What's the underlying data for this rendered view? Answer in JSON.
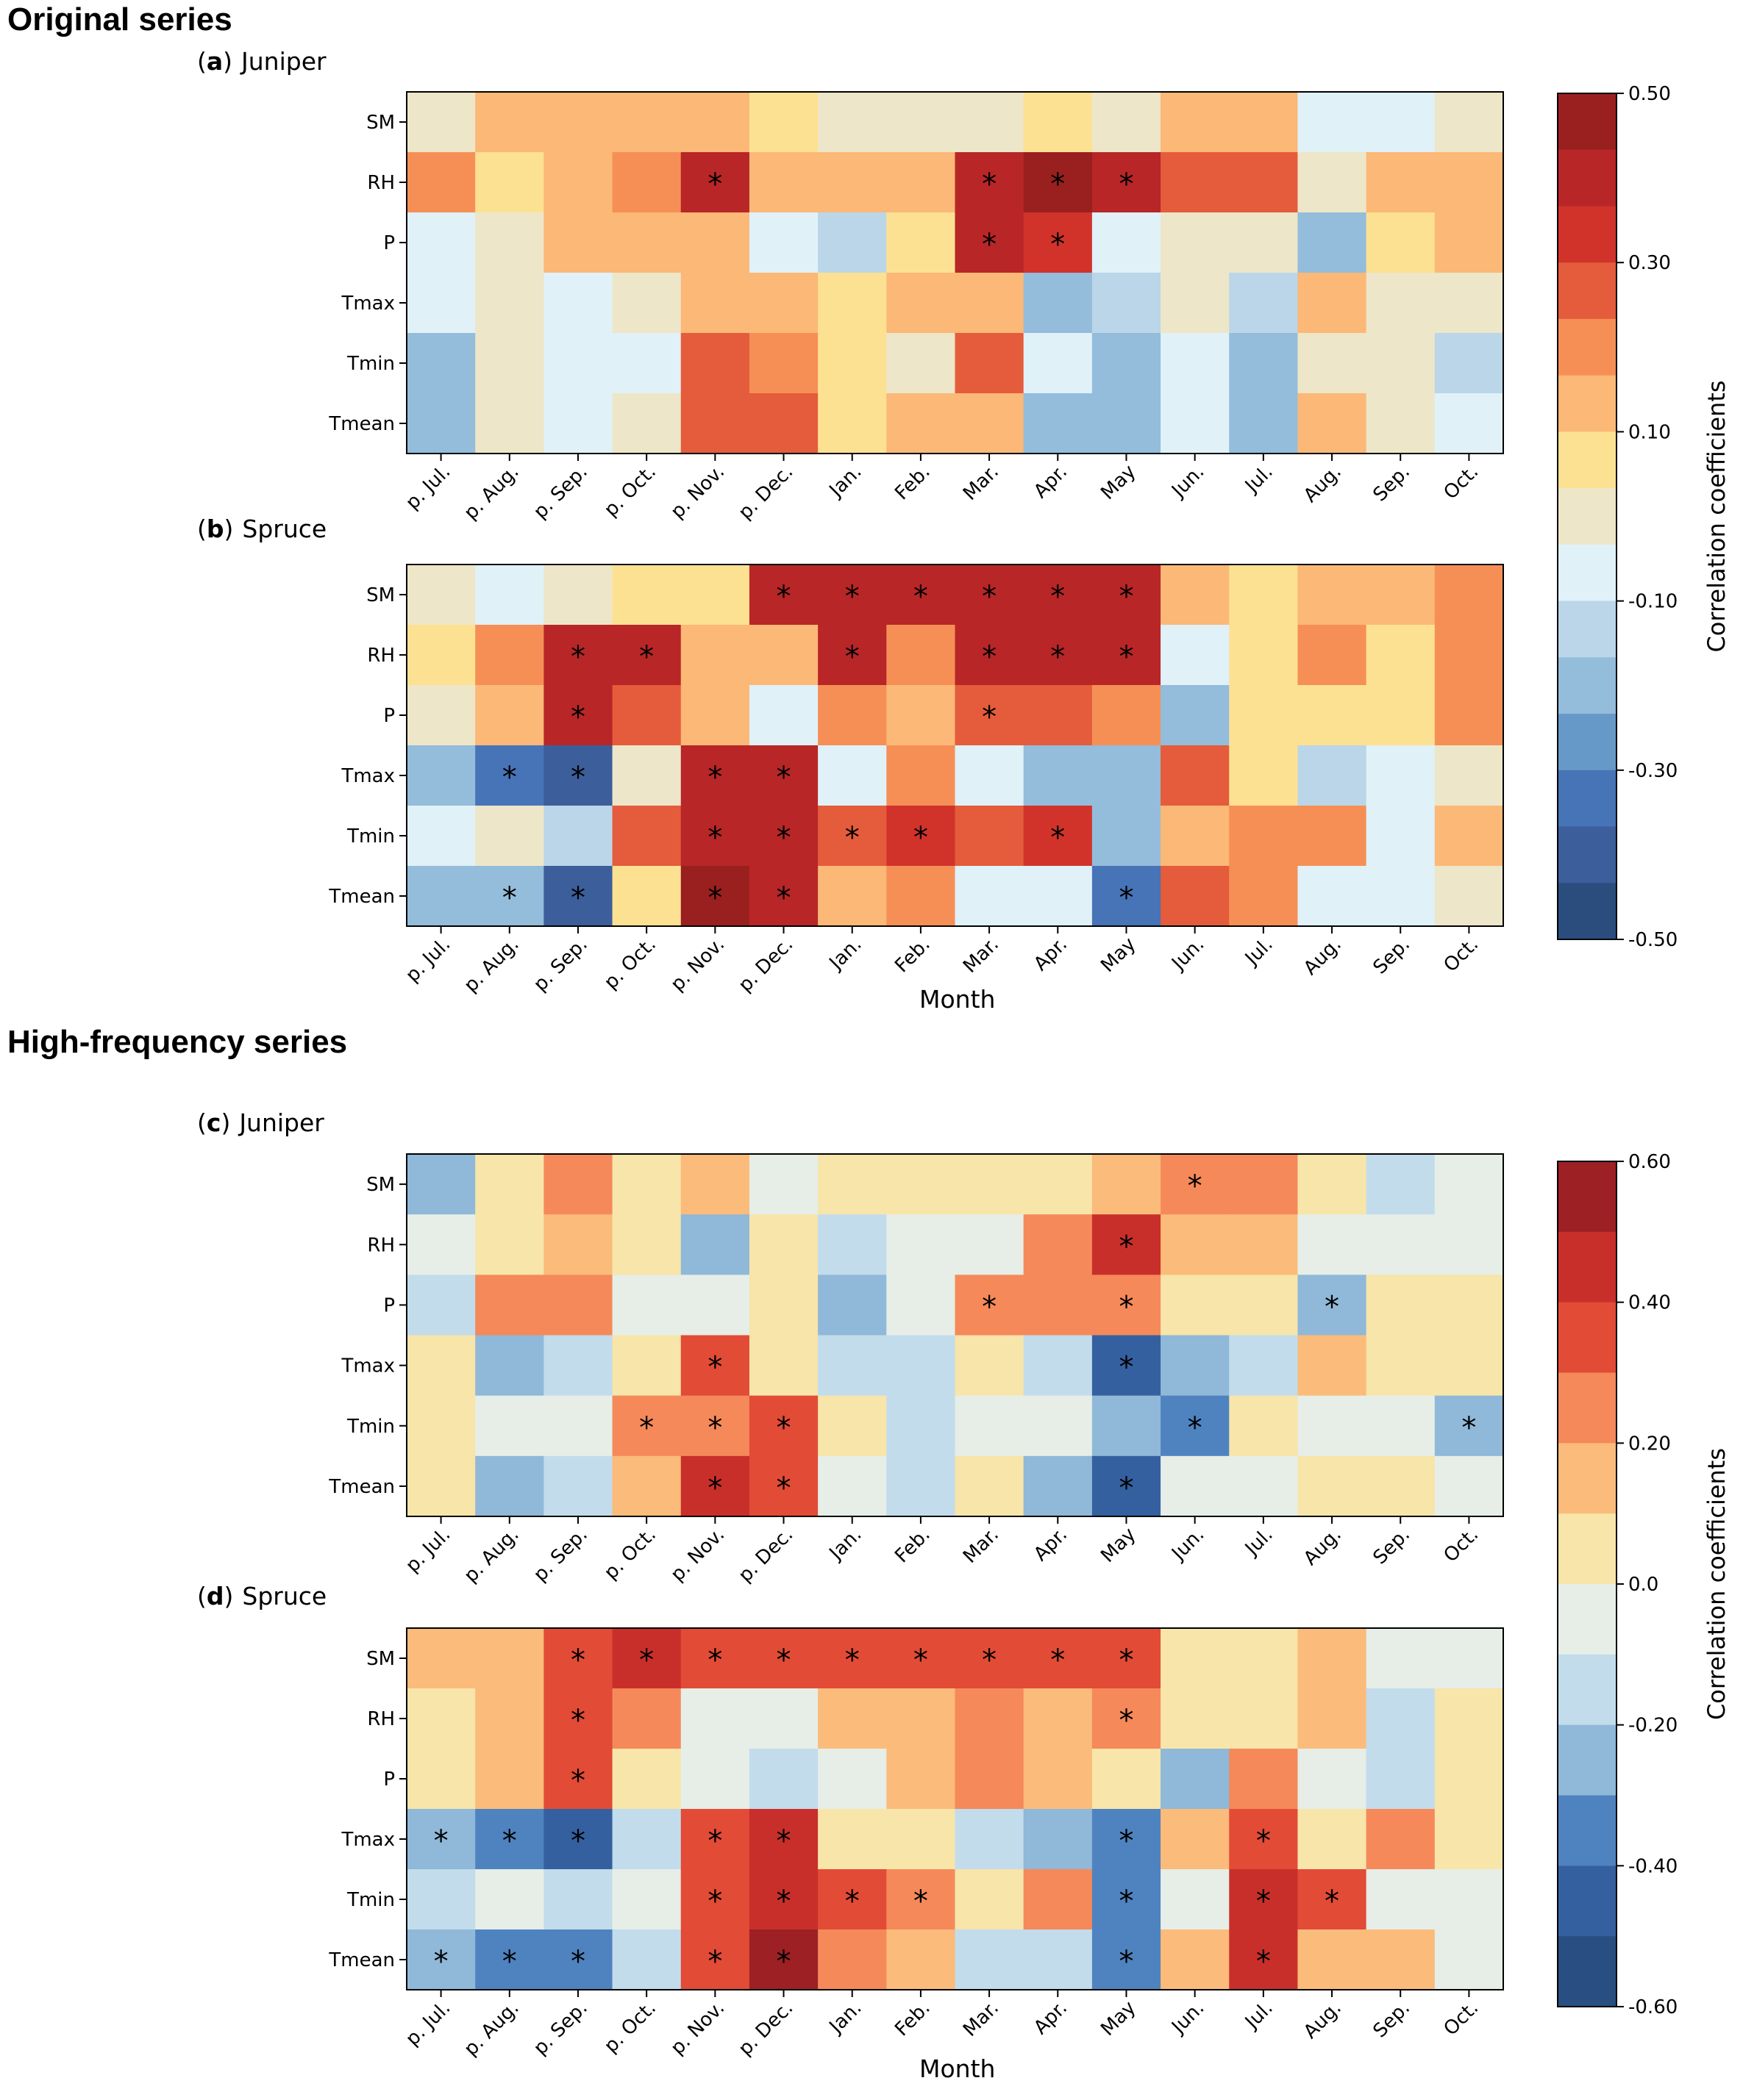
{
  "sections": {
    "original_title": "Original series",
    "highfreq_title": "High-frequency series"
  },
  "panels": [
    {
      "letter": "a",
      "name": "Juniper"
    },
    {
      "letter": "b",
      "name": "Spruce"
    },
    {
      "letter": "c",
      "name": "Juniper"
    },
    {
      "letter": "d",
      "name": "Spruce"
    }
  ],
  "colors": {
    "original": [
      "#2a4d7d",
      "#3c5e9b",
      "#4773b7",
      "#6699c7",
      "#94bcdb",
      "#bad6e8",
      "#e0f1f8",
      "#ede6c8",
      "#fde192",
      "#fbb877",
      "#f68f56",
      "#e45c3b",
      "#d1332b",
      "#b82627",
      "#99201f"
    ],
    "highfreq": [
      "#294e81",
      "#3560a0",
      "#4f83c0",
      "#90b8d8",
      "#c2dcec",
      "#e6eee7",
      "#f7e5a9",
      "#fbbb7a",
      "#f5895a",
      "#e24b36",
      "#c92f2a",
      "#9c2024"
    ]
  },
  "chart_data": [
    {
      "type": "heatmap",
      "panel": "a",
      "title": "Juniper",
      "xlabel": "",
      "ylabel": "",
      "x": [
        "p. Jul.",
        "p. Aug.",
        "p. Sep.",
        "p. Oct.",
        "p. Nov.",
        "p. Dec.",
        "Jan.",
        "Feb.",
        "Mar.",
        "Apr.",
        "May",
        "Jun.",
        "Jul.",
        "Aug.",
        "Sep.",
        "Oct."
      ],
      "y": [
        "SM",
        "RH",
        "P",
        "Tmax",
        "Tmin",
        "Tmean"
      ],
      "values": [
        [
          -0.03,
          0.13,
          0.13,
          0.13,
          0.13,
          0.07,
          -0.03,
          -0.03,
          -0.03,
          0.07,
          -0.03,
          0.13,
          0.13,
          -0.07,
          -0.07,
          -0.03
        ],
        [
          0.23,
          0.07,
          0.13,
          0.23,
          0.37,
          0.13,
          0.13,
          0.13,
          0.37,
          0.44,
          0.37,
          0.27,
          0.27,
          -0.03,
          0.13,
          0.13
        ],
        [
          -0.07,
          -0.03,
          0.13,
          0.13,
          0.13,
          -0.07,
          -0.13,
          0.07,
          0.37,
          0.33,
          -0.07,
          -0.03,
          -0.03,
          -0.17,
          0.07,
          0.13
        ],
        [
          -0.07,
          -0.03,
          -0.07,
          -0.03,
          0.13,
          0.13,
          0.07,
          0.13,
          0.13,
          -0.17,
          -0.13,
          -0.03,
          -0.13,
          0.13,
          -0.03,
          -0.03
        ],
        [
          -0.17,
          -0.03,
          -0.07,
          -0.07,
          0.27,
          0.23,
          0.07,
          -0.03,
          0.27,
          -0.07,
          -0.17,
          -0.07,
          -0.17,
          -0.03,
          -0.03,
          -0.13
        ],
        [
          -0.17,
          -0.03,
          -0.07,
          -0.03,
          0.27,
          0.27,
          0.07,
          0.13,
          0.13,
          -0.23,
          -0.17,
          -0.07,
          -0.23,
          0.13,
          -0.03,
          -0.07
        ]
      ],
      "significant": [
        [],
        [
          "p. Nov.",
          "Mar.",
          "Apr.",
          "May"
        ],
        [
          "Mar.",
          "Apr."
        ],
        [],
        [],
        []
      ],
      "colorbar": {
        "range": [
          -0.5,
          0.5
        ],
        "ticks": [
          "0.50",
          "0.30",
          "0.10",
          "-0.10",
          "-0.30",
          "-0.50"
        ],
        "label": "Correlation coefficients"
      }
    },
    {
      "type": "heatmap",
      "panel": "b",
      "title": "Spruce",
      "xlabel": "Month",
      "ylabel": "",
      "x": [
        "p. Jul.",
        "p. Aug.",
        "p. Sep.",
        "p. Oct.",
        "p. Nov.",
        "p. Dec.",
        "Jan.",
        "Feb.",
        "Mar.",
        "Apr.",
        "May",
        "Jun.",
        "Jul.",
        "Aug.",
        "Sep.",
        "Oct."
      ],
      "y": [
        "SM",
        "RH",
        "P",
        "Tmax",
        "Tmin",
        "Tmean"
      ],
      "values": [
        [
          -0.03,
          -0.07,
          -0.03,
          0.07,
          0.07,
          0.37,
          0.37,
          0.37,
          0.37,
          0.4,
          0.4,
          0.13,
          0.07,
          0.13,
          0.13,
          0.23
        ],
        [
          0.07,
          0.23,
          0.37,
          0.37,
          0.13,
          0.13,
          0.4,
          0.23,
          0.37,
          0.37,
          0.37,
          -0.07,
          0.07,
          0.23,
          0.07,
          0.23
        ],
        [
          -0.03,
          0.13,
          0.37,
          0.27,
          0.13,
          -0.07,
          0.23,
          0.13,
          0.27,
          0.27,
          0.23,
          -0.17,
          0.07,
          0.07,
          0.07,
          0.23
        ],
        [
          -0.23,
          -0.33,
          -0.4,
          -0.03,
          0.4,
          0.37,
          -0.07,
          0.23,
          -0.07,
          -0.17,
          -0.23,
          0.27,
          0.07,
          -0.13,
          -0.07,
          -0.03
        ],
        [
          -0.07,
          -0.03,
          -0.13,
          0.27,
          0.4,
          0.4,
          0.27,
          0.33,
          0.27,
          0.33,
          -0.17,
          0.13,
          0.23,
          0.23,
          -0.07,
          0.13
        ],
        [
          -0.23,
          -0.23,
          -0.4,
          0.07,
          0.44,
          0.4,
          0.13,
          0.23,
          -0.07,
          -0.07,
          -0.33,
          0.27,
          0.23,
          -0.07,
          -0.07,
          -0.03
        ]
      ],
      "significant": [
        [
          "p. Dec.",
          "Jan.",
          "Feb.",
          "Mar.",
          "Apr.",
          "May"
        ],
        [
          "p. Sep.",
          "p. Oct.",
          "Jan.",
          "Mar.",
          "Apr.",
          "May"
        ],
        [
          "p. Sep.",
          "Mar."
        ],
        [
          "p. Aug.",
          "p. Sep.",
          "p. Nov.",
          "p. Dec."
        ],
        [
          "p. Nov.",
          "p. Dec.",
          "Jan.",
          "Feb.",
          "Apr."
        ],
        [
          "p. Aug.",
          "p. Sep.",
          "p. Nov.",
          "p. Dec.",
          "May"
        ]
      ],
      "colorbar": {
        "range": [
          -0.5,
          0.5
        ],
        "ticks": [
          "0.50",
          "0.30",
          "0.10",
          "-0.10",
          "-0.30",
          "-0.50"
        ],
        "label": "Correlation coefficients"
      }
    },
    {
      "type": "heatmap",
      "panel": "c",
      "title": "Juniper",
      "xlabel": "",
      "ylabel": "",
      "x": [
        "p. Jul.",
        "p. Aug.",
        "p. Sep.",
        "p. Oct.",
        "p. Nov.",
        "p. Dec.",
        "Jan.",
        "Feb.",
        "Mar.",
        "Apr.",
        "May",
        "Jun.",
        "Jul.",
        "Aug.",
        "Sep.",
        "Oct."
      ],
      "y": [
        "SM",
        "RH",
        "P",
        "Tmax",
        "Tmin",
        "Tmean"
      ],
      "values": [
        [
          -0.25,
          0.05,
          0.25,
          0.05,
          0.15,
          -0.05,
          0.05,
          0.05,
          0.05,
          0.05,
          0.15,
          0.25,
          0.25,
          0.05,
          -0.15,
          -0.05
        ],
        [
          -0.05,
          0.05,
          0.15,
          0.05,
          -0.25,
          0.05,
          -0.15,
          -0.05,
          -0.05,
          0.25,
          0.45,
          0.15,
          0.15,
          -0.05,
          -0.05,
          -0.05
        ],
        [
          -0.15,
          0.25,
          0.25,
          -0.05,
          -0.05,
          0.05,
          -0.25,
          -0.05,
          0.25,
          0.25,
          0.25,
          0.05,
          0.05,
          -0.25,
          0.05,
          0.05
        ],
        [
          0.05,
          -0.25,
          -0.15,
          0.05,
          0.35,
          0.05,
          -0.15,
          -0.15,
          0.05,
          -0.15,
          -0.45,
          -0.25,
          -0.15,
          0.15,
          0.05,
          0.05
        ],
        [
          0.05,
          -0.05,
          -0.05,
          0.25,
          0.25,
          0.35,
          0.05,
          -0.15,
          -0.05,
          -0.05,
          -0.25,
          -0.35,
          0.05,
          -0.05,
          -0.05,
          -0.25
        ],
        [
          0.05,
          -0.25,
          -0.15,
          0.15,
          0.45,
          0.35,
          -0.05,
          -0.15,
          0.05,
          -0.25,
          -0.45,
          -0.05,
          -0.05,
          0.05,
          0.05,
          -0.05
        ]
      ],
      "significant": [
        [
          "Jun."
        ],
        [
          "May"
        ],
        [
          "Mar.",
          "May",
          "Aug."
        ],
        [
          "p. Nov.",
          "May"
        ],
        [
          "p. Oct.",
          "p. Nov.",
          "p. Dec.",
          "Jun.",
          "Oct."
        ],
        [
          "p. Nov.",
          "p. Dec.",
          "May"
        ]
      ],
      "colorbar": {
        "range": [
          -0.6,
          0.6
        ],
        "ticks": [
          "0.60",
          "0.40",
          "0.20",
          "0.0",
          "-0.20",
          "-0.40",
          "-0.60"
        ],
        "label": "Correlation coefficients"
      }
    },
    {
      "type": "heatmap",
      "panel": "d",
      "title": "Spruce",
      "xlabel": "Month",
      "ylabel": "",
      "x": [
        "p. Jul.",
        "p. Aug.",
        "p. Sep.",
        "p. Oct.",
        "p. Nov.",
        "p. Dec.",
        "Jan.",
        "Feb.",
        "Mar.",
        "Apr.",
        "May",
        "Jun.",
        "Jul.",
        "Aug.",
        "Sep.",
        "Oct."
      ],
      "y": [
        "SM",
        "RH",
        "P",
        "Tmax",
        "Tmin",
        "Tmean"
      ],
      "values": [
        [
          0.15,
          0.15,
          0.35,
          0.45,
          0.35,
          0.35,
          0.35,
          0.35,
          0.35,
          0.35,
          0.35,
          0.05,
          0.05,
          0.15,
          -0.05,
          -0.05
        ],
        [
          0.05,
          0.15,
          0.35,
          0.25,
          -0.05,
          -0.05,
          0.15,
          0.15,
          0.25,
          0.15,
          0.25,
          0.05,
          0.05,
          0.15,
          -0.15,
          0.05
        ],
        [
          0.05,
          0.15,
          0.35,
          0.05,
          -0.05,
          -0.15,
          -0.05,
          0.15,
          0.25,
          0.15,
          0.05,
          -0.25,
          0.25,
          -0.05,
          -0.15,
          0.05
        ],
        [
          -0.25,
          -0.35,
          -0.45,
          -0.15,
          0.35,
          0.45,
          0.05,
          0.05,
          -0.15,
          -0.25,
          -0.35,
          0.15,
          0.35,
          0.05,
          0.25,
          0.05
        ],
        [
          -0.15,
          -0.05,
          -0.15,
          -0.05,
          0.35,
          0.45,
          0.35,
          0.25,
          0.05,
          0.25,
          -0.35,
          -0.05,
          0.45,
          0.35,
          -0.05,
          -0.05
        ],
        [
          -0.25,
          -0.35,
          -0.35,
          -0.15,
          0.35,
          0.55,
          0.25,
          0.15,
          -0.15,
          -0.15,
          -0.35,
          0.15,
          0.45,
          0.15,
          0.15,
          -0.05
        ]
      ],
      "significant": [
        [
          "p. Sep.",
          "p. Oct.",
          "p. Nov.",
          "p. Dec.",
          "Jan.",
          "Feb.",
          "Mar.",
          "Apr.",
          "May"
        ],
        [
          "p. Sep.",
          "May"
        ],
        [
          "p. Sep."
        ],
        [
          "p. Jul.",
          "p. Aug.",
          "p. Sep.",
          "p. Nov.",
          "p. Dec.",
          "May",
          "Jul."
        ],
        [
          "p. Nov.",
          "p. Dec.",
          "Jan.",
          "Feb.",
          "May",
          "Jul.",
          "Aug."
        ],
        [
          "p. Jul.",
          "p. Aug.",
          "p. Sep.",
          "p. Nov.",
          "p. Dec.",
          "May",
          "Jul."
        ]
      ],
      "colorbar": {
        "range": [
          -0.6,
          0.6
        ],
        "ticks": [
          "0.60",
          "0.40",
          "0.20",
          "0.0",
          "-0.20",
          "-0.40",
          "-0.60"
        ],
        "label": "Correlation coefficients"
      }
    }
  ]
}
